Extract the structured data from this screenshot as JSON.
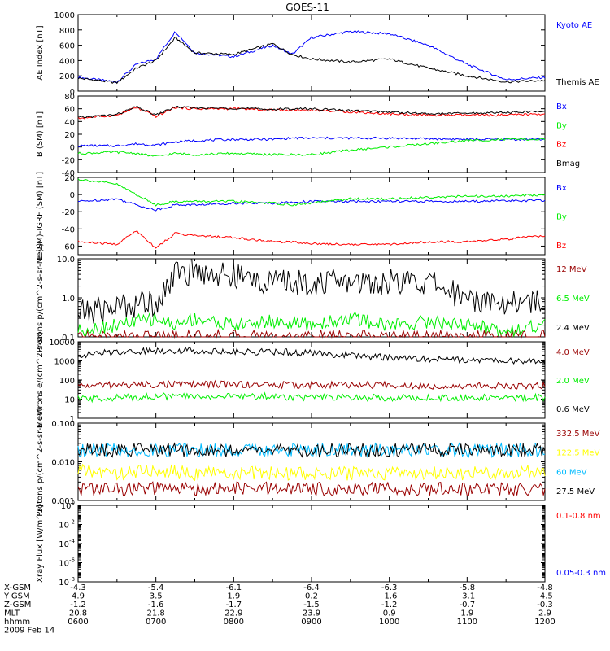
{
  "title": "GOES-11",
  "colors": {
    "black": "#000000",
    "blue": "#0000ff",
    "red": "#ff0000",
    "green": "#00ee00",
    "darkred": "#990000",
    "lightgreen": "#00ee00",
    "yellow": "#ffff00",
    "cyan": "#00bbff"
  },
  "chart_data": [
    {
      "type": "line",
      "ylabel": "AE Index [nT]",
      "yscale": "linear",
      "ylim": [
        0,
        1000
      ],
      "yticks": [
        "1000",
        "800",
        "600",
        "400",
        "200",
        "0"
      ],
      "x": [
        "0600",
        "0630",
        "0645",
        "0700",
        "0715",
        "0730",
        "0800",
        "0830",
        "0845",
        "0900",
        "0930",
        "1000",
        "1030",
        "1100",
        "1130",
        "1200"
      ],
      "series": [
        {
          "name": "Kyoto AE",
          "color": "blue",
          "values": [
            180,
            120,
            350,
            420,
            780,
            500,
            450,
            600,
            480,
            700,
            780,
            750,
            600,
            350,
            150,
            180
          ]
        },
        {
          "name": "Themis AE",
          "color": "black",
          "values": [
            170,
            110,
            300,
            400,
            700,
            500,
            480,
            620,
            480,
            420,
            380,
            420,
            300,
            200,
            120,
            140
          ]
        }
      ]
    },
    {
      "type": "line",
      "ylabel": "B (SM) [nT]",
      "yscale": "linear",
      "ylim": [
        -40,
        80
      ],
      "yticks": [
        "80",
        "60",
        "40",
        "20",
        "0",
        "-20",
        "-40"
      ],
      "x": [
        "0600",
        "0630",
        "0645",
        "0700",
        "0715",
        "0730",
        "0800",
        "0830",
        "0845",
        "0900",
        "0930",
        "1000",
        "1030",
        "1100",
        "1130",
        "1200"
      ],
      "series": [
        {
          "name": "Bx",
          "color": "blue",
          "values": [
            2,
            2,
            5,
            3,
            8,
            10,
            12,
            12,
            14,
            14,
            14,
            14,
            13,
            12,
            12,
            12
          ]
        },
        {
          "name": "By",
          "color": "green",
          "values": [
            -10,
            -8,
            -10,
            -15,
            -10,
            -12,
            -10,
            -12,
            -12,
            -12,
            -5,
            0,
            5,
            10,
            12,
            12
          ]
        },
        {
          "name": "Bz",
          "color": "red",
          "values": [
            45,
            50,
            62,
            48,
            62,
            60,
            60,
            58,
            58,
            58,
            55,
            52,
            50,
            50,
            50,
            52
          ]
        },
        {
          "name": "Bmag",
          "color": "black",
          "values": [
            46,
            51,
            63,
            50,
            63,
            61,
            61,
            59,
            60,
            60,
            57,
            55,
            52,
            53,
            54,
            56
          ]
        }
      ]
    },
    {
      "type": "line",
      "ylabel": "B (SM)-IGRF (SM) [nT]",
      "yscale": "linear",
      "ylim": [
        -70,
        20
      ],
      "yticks": [
        "20",
        "0",
        "-20",
        "-40",
        "-60"
      ],
      "x": [
        "0600",
        "0630",
        "0645",
        "0700",
        "0715",
        "0730",
        "0800",
        "0830",
        "0845",
        "0900",
        "0930",
        "1000",
        "1030",
        "1100",
        "1130",
        "1200"
      ],
      "series": [
        {
          "name": "Bx",
          "color": "blue",
          "values": [
            -8,
            -5,
            -12,
            -18,
            -12,
            -12,
            -10,
            -10,
            -9,
            -8,
            -8,
            -8,
            -8,
            -8,
            -7,
            -7
          ]
        },
        {
          "name": "By",
          "color": "green",
          "values": [
            18,
            12,
            0,
            -12,
            -8,
            -8,
            -8,
            -10,
            -12,
            -10,
            -5,
            -5,
            -3,
            -2,
            -2,
            0
          ]
        },
        {
          "name": "Bz",
          "color": "red",
          "values": [
            -55,
            -58,
            -42,
            -62,
            -45,
            -48,
            -50,
            -55,
            -55,
            -57,
            -58,
            -58,
            -55,
            -55,
            -52,
            -48
          ]
        }
      ]
    },
    {
      "type": "line",
      "ylabel": "Protons p/(cm^2-s-sr-MeV)",
      "yscale": "log",
      "ylim": [
        0.1,
        10
      ],
      "yticks": [
        "10.0",
        "1.0",
        "0.1"
      ],
      "x": [
        "0600",
        "0630",
        "0700",
        "0715",
        "0730",
        "0800",
        "0830",
        "0900",
        "0930",
        "1000",
        "1030",
        "1100",
        "1130",
        "1200"
      ],
      "series": [
        {
          "name": "12 MeV",
          "color": "darkred",
          "values": [
            0.1,
            0.1,
            0.1,
            0.1,
            0.1,
            0.1,
            0.1,
            0.1,
            0.1,
            0.1,
            0.1,
            0.1,
            0.1,
            0.1
          ]
        },
        {
          "name": "6.5 MeV",
          "color": "lightgreen",
          "values": [
            0.15,
            0.2,
            0.3,
            0.2,
            0.3,
            0.2,
            0.25,
            0.2,
            0.3,
            0.2,
            0.25,
            0.2,
            0.15,
            0.2
          ]
        },
        {
          "name": "2.4 MeV",
          "color": "black",
          "values": [
            0.4,
            0.6,
            0.8,
            4,
            5,
            3.5,
            2.5,
            2.5,
            2.5,
            2.5,
            2.5,
            1,
            0.8,
            0.8
          ]
        }
      ]
    },
    {
      "type": "line",
      "ylabel": "Electrons e/(cm^2-s-sr)",
      "yscale": "log",
      "ylim": [
        1,
        10000
      ],
      "yticks": [
        "10000",
        "1000",
        "100",
        "10",
        "1"
      ],
      "x": [
        "0600",
        "0630",
        "0700",
        "0730",
        "0800",
        "0830",
        "0900",
        "0930",
        "1000",
        "1030",
        "1100",
        "1130",
        "1200"
      ],
      "series": [
        {
          "name": "4.0 MeV",
          "color": "darkred",
          "values": [
            50,
            55,
            60,
            60,
            60,
            55,
            55,
            55,
            55,
            50,
            50,
            50,
            50
          ]
        },
        {
          "name": "2.0 MeV",
          "color": "green",
          "values": [
            10,
            12,
            14,
            14,
            14,
            14,
            12,
            12,
            12,
            12,
            12,
            12,
            12
          ]
        },
        {
          "name": "0.6 MeV",
          "color": "black",
          "values": [
            2000,
            3000,
            3500,
            3500,
            3000,
            3000,
            2500,
            2000,
            1500,
            1200,
            1200,
            1000,
            900
          ]
        }
      ]
    },
    {
      "type": "line",
      "ylabel": "Protons p/(cm^2-s-sr-MeV)",
      "yscale": "log",
      "ylim": [
        0.001,
        0.1
      ],
      "yticks": [
        "0.100",
        "0.010",
        "0.001"
      ],
      "x": [
        "0600",
        "0630",
        "0700",
        "0730",
        "0800",
        "0830",
        "0900",
        "0930",
        "1000",
        "1030",
        "1100",
        "1130",
        "1200"
      ],
      "series": [
        {
          "name": "332.5 MeV",
          "color": "darkred",
          "values": [
            0.002,
            0.002,
            0.002,
            0.002,
            0.002,
            0.002,
            0.002,
            0.002,
            0.002,
            0.002,
            0.002,
            0.002,
            0.002
          ]
        },
        {
          "name": "122.5 MeV",
          "color": "yellow",
          "values": [
            0.006,
            0.005,
            0.006,
            0.005,
            0.005,
            0.005,
            0.005,
            0.005,
            0.005,
            0.005,
            0.005,
            0.005,
            0.006
          ]
        },
        {
          "name": "60 MeV",
          "color": "cyan",
          "values": [
            0.02,
            0.02,
            0.02,
            0.02,
            0.02,
            0.02,
            0.02,
            0.02,
            0.02,
            0.02,
            0.02,
            0.02,
            0.02
          ]
        },
        {
          "name": "27.5 MeV",
          "color": "black",
          "values": [
            0.02,
            0.02,
            0.02,
            0.02,
            0.02,
            0.02,
            0.02,
            0.02,
            0.02,
            0.02,
            0.02,
            0.02,
            0.02
          ]
        }
      ]
    },
    {
      "type": "line",
      "ylabel": "Xray Flux [W/m^2]",
      "yscale": "log",
      "ylim": [
        1e-08,
        1
      ],
      "yticks": [
        "10^0",
        "10^-2",
        "10^-4",
        "10^-6",
        "10^-8"
      ],
      "x": [],
      "series": [
        {
          "name": "0.1-0.8 nm",
          "color": "red",
          "values": []
        },
        {
          "name": "0.05-0.3 nm",
          "color": "blue",
          "values": []
        }
      ]
    }
  ],
  "xaxis": {
    "rows": [
      {
        "label": "X-GSM",
        "values": [
          "-4.3",
          "-5.4",
          "-6.1",
          "-6.4",
          "-6.3",
          "-5.8",
          "-4.8"
        ]
      },
      {
        "label": "Y-GSM",
        "values": [
          "4.9",
          "3.5",
          "1.9",
          "0.2",
          "-1.6",
          "-3.1",
          "-4.5"
        ]
      },
      {
        "label": "Z-GSM",
        "values": [
          "-1.2",
          "-1.6",
          "-1.7",
          "-1.5",
          "-1.2",
          "-0.7",
          "-0.3"
        ]
      },
      {
        "label": "MLT",
        "values": [
          "20.8",
          "21.8",
          "22.9",
          "23.9",
          "0.9",
          "1.9",
          "2.9"
        ]
      },
      {
        "label": "hhmm",
        "values": [
          "0600",
          "0700",
          "0800",
          "0900",
          "1000",
          "1100",
          "1200"
        ]
      }
    ],
    "date": "2009 Feb 14"
  }
}
